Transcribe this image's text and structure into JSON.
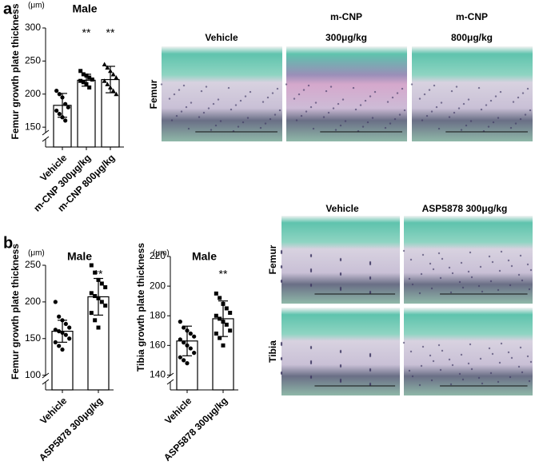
{
  "panels": [
    "a",
    "b"
  ],
  "chart_data": [
    {
      "type": "bar",
      "title": "Male",
      "unit": "(μm)",
      "ylabel": "Femur growth plate thickness",
      "categories": [
        "Vehicle",
        "m-CNP 300μg/kg",
        "m-CNP 800μg/kg"
      ],
      "values": [
        183,
        221,
        222
      ],
      "errors": [
        18,
        9,
        20
      ],
      "points": [
        [
          205,
          200,
          195,
          185,
          180,
          175,
          170,
          165,
          160
        ],
        [
          235,
          230,
          228,
          225,
          222,
          220,
          218,
          215,
          210
        ],
        [
          245,
          240,
          235,
          230,
          225,
          220,
          215,
          210,
          205,
          200
        ]
      ],
      "markers": [
        "circle",
        "square",
        "triangle"
      ],
      "annotations": [
        null,
        "**",
        "**"
      ],
      "color": "#ffffff",
      "ylim": [
        120,
        300
      ],
      "yticks": [
        150,
        200,
        250,
        300
      ]
    },
    {
      "type": "bar",
      "title": "Male",
      "unit": "(μm)",
      "ylabel": "Femur growth plate thickness",
      "categories": [
        "Vehicle",
        "ASP5878 300μg/kg"
      ],
      "values": [
        160,
        207
      ],
      "errors": [
        15,
        25
      ],
      "points": [
        [
          200,
          180,
          175,
          170,
          165,
          162,
          160,
          158,
          155,
          150,
          145,
          140,
          135
        ],
        [
          250,
          240,
          230,
          225,
          220,
          212,
          208,
          205,
          200,
          195,
          185,
          175,
          165
        ]
      ],
      "markers": [
        "circle",
        "square"
      ],
      "annotations": [
        null,
        "**"
      ],
      "color": "#ffffff",
      "ylim": [
        80,
        250
      ],
      "yticks": [
        100,
        150,
        200,
        250
      ]
    },
    {
      "type": "bar",
      "title": "Male",
      "unit": "(μm)",
      "ylabel": "Tibia growth plate thickness",
      "categories": [
        "Vehicle",
        "ASP5878 300μg/kg"
      ],
      "values": [
        163,
        178
      ],
      "errors": [
        10,
        12
      ],
      "points": [
        [
          176,
          172,
          170,
          168,
          166,
          164,
          162,
          160,
          158,
          155,
          152,
          150,
          148
        ],
        [
          195,
          192,
          188,
          185,
          182,
          180,
          178,
          176,
          174,
          170,
          168,
          165,
          160
        ]
      ],
      "markers": [
        "circle",
        "square"
      ],
      "annotations": [
        null,
        "**"
      ],
      "color": "#ffffff",
      "ylim": [
        130,
        220
      ],
      "yticks": [
        140,
        160,
        180,
        200,
        220
      ]
    }
  ],
  "images": {
    "top": {
      "columns": [
        [
          "Vehicle"
        ],
        [
          "m-CNP",
          "300μg/kg"
        ],
        [
          "m-CNP",
          "800μg/kg"
        ]
      ],
      "rows": [
        "Femur"
      ]
    },
    "bottom": {
      "columns": [
        "Vehicle",
        "ASP5878 300μg/kg"
      ],
      "rows": [
        "Femur",
        "Tibia"
      ]
    }
  }
}
